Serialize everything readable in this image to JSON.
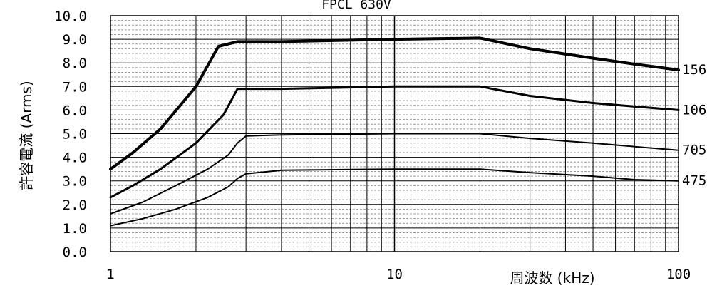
{
  "chart_data": {
    "type": "line",
    "title": "FPCL 630V",
    "xlabel": "周波数 (kHz)",
    "ylabel": "許容電流  (Arms)",
    "xscale": "log",
    "xlim": [
      1,
      100
    ],
    "ylim": [
      0,
      10
    ],
    "xticks": [
      "1",
      "10",
      "100"
    ],
    "yticks": [
      "0.0",
      "1.0",
      "2.0",
      "3.0",
      "4.0",
      "5.0",
      "6.0",
      "7.0",
      "8.0",
      "9.0",
      "10.0"
    ],
    "grid": true,
    "series": [
      {
        "name": "156",
        "x": [
          1,
          1.2,
          1.5,
          2,
          2.4,
          2.8,
          4,
          10,
          20,
          30,
          50,
          70,
          100
        ],
        "y": [
          3.5,
          4.2,
          5.2,
          7.0,
          8.7,
          8.9,
          8.9,
          9.0,
          9.05,
          8.6,
          8.2,
          7.95,
          7.7
        ]
      },
      {
        "name": "106",
        "x": [
          1,
          1.2,
          1.5,
          2,
          2.5,
          2.8,
          4,
          10,
          20,
          30,
          50,
          70,
          100
        ],
        "y": [
          2.3,
          2.8,
          3.5,
          4.6,
          5.8,
          6.9,
          6.9,
          7.0,
          7.0,
          6.6,
          6.3,
          6.15,
          6.0
        ]
      },
      {
        "name": "705",
        "x": [
          1,
          1.3,
          1.7,
          2.2,
          2.6,
          2.8,
          3.0,
          4,
          10,
          20,
          30,
          50,
          70,
          100
        ],
        "y": [
          1.6,
          2.1,
          2.8,
          3.5,
          4.1,
          4.6,
          4.9,
          4.95,
          5.0,
          5.0,
          4.8,
          4.6,
          4.45,
          4.3
        ]
      },
      {
        "name": "475",
        "x": [
          1,
          1.3,
          1.7,
          2.2,
          2.6,
          2.8,
          3.0,
          4,
          10,
          20,
          30,
          50,
          70,
          100
        ],
        "y": [
          1.1,
          1.4,
          1.8,
          2.3,
          2.75,
          3.1,
          3.3,
          3.45,
          3.5,
          3.5,
          3.35,
          3.2,
          3.05,
          3.0
        ]
      }
    ],
    "line_widths": [
      4,
      3,
      2,
      2
    ]
  }
}
